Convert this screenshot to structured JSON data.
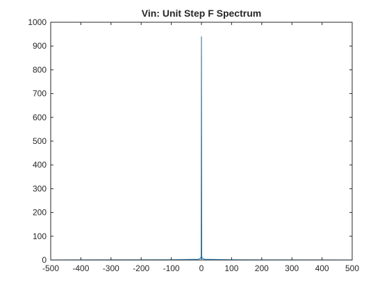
{
  "chart_data": {
    "type": "line",
    "title": "Vin: Unit Step F Spectrum",
    "xlabel": "",
    "ylabel": "",
    "xlim": [
      -500,
      500
    ],
    "ylim": [
      0,
      1000
    ],
    "xticks": [
      -500,
      -400,
      -300,
      -200,
      -100,
      0,
      100,
      200,
      300,
      400,
      500
    ],
    "yticks": [
      0,
      100,
      200,
      300,
      400,
      500,
      600,
      700,
      800,
      900,
      1000
    ],
    "grid": false,
    "legend": "none",
    "series": [
      {
        "color": "#0072BD",
        "x": [
          -500,
          -100,
          -10,
          -3,
          -1,
          0,
          1,
          3,
          10,
          100,
          500
        ],
        "y": [
          0.5,
          1,
          3,
          8,
          15,
          940,
          15,
          8,
          3,
          1,
          0.5
        ]
      }
    ]
  }
}
